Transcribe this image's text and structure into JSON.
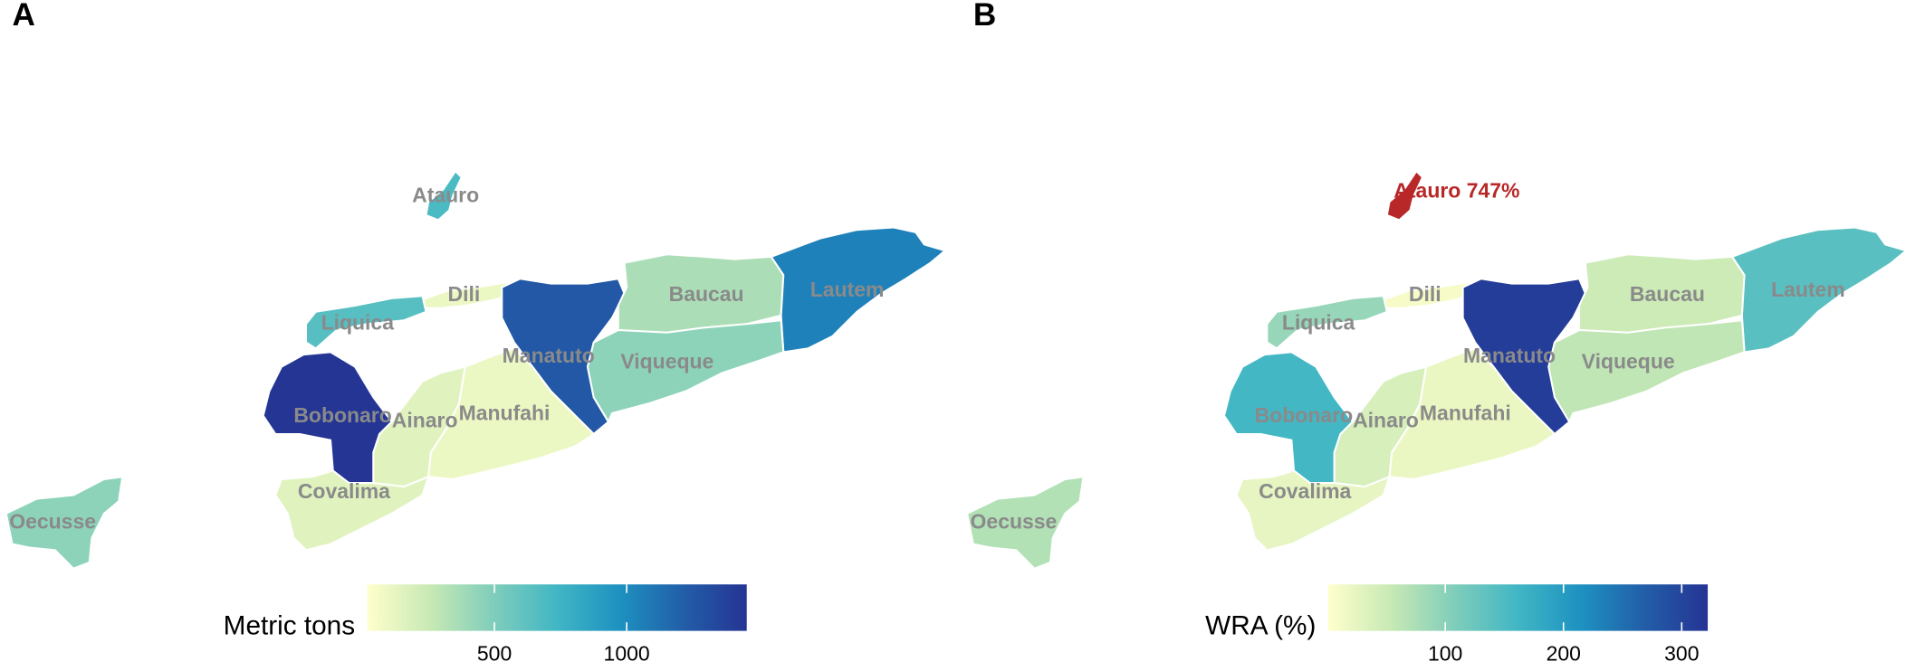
{
  "chart_data": [
    {
      "type": "choropleth",
      "panel_label": "A",
      "categories": [
        "Atauro",
        "Dili",
        "Liquica",
        "Manatuto",
        "Baucau",
        "Lautem",
        "Viqueque",
        "Bobonaro",
        "Ainaro",
        "Manufahi",
        "Covalima",
        "Oecusse"
      ],
      "values": [
        700,
        100,
        650,
        1250,
        350,
        1050,
        450,
        1450,
        150,
        100,
        150,
        450
      ],
      "colorbar": {
        "title": "Metric tons",
        "lim": [
          19,
          1454
        ],
        "ticks": [
          500,
          1000
        ]
      },
      "colormap": [
        "#ffffcc",
        "#c7e9b4",
        "#7fcdbb",
        "#41b6c4",
        "#1d91c0",
        "#225ea8",
        "#253494"
      ]
    },
    {
      "type": "choropleth",
      "panel_label": "B",
      "categories": [
        null,
        "Dili",
        "Liquica",
        "Manatuto",
        "Baucau",
        "Lautem",
        "Viqueque",
        "Bobonaro",
        "Ainaro",
        "Manufahi",
        "Covalima",
        "Oecusse"
      ],
      "values": [
        747,
        10,
        90,
        310,
        50,
        140,
        60,
        160,
        40,
        20,
        25,
        70
      ],
      "value_labels": [
        "Atauro 747%",
        null,
        null,
        null,
        null,
        null,
        null,
        null,
        null,
        null,
        null,
        null
      ],
      "colorbar": {
        "title": "WRA (%)",
        "lim": [
          1,
          322
        ],
        "ticks": [
          100,
          200,
          300
        ]
      },
      "colormap": [
        "#ffffcc",
        "#c7e9b4",
        "#7fcdbb",
        "#41b6c4",
        "#1d91c0",
        "#225ea8",
        "#253494"
      ],
      "highlight_color": "#b82828"
    }
  ]
}
